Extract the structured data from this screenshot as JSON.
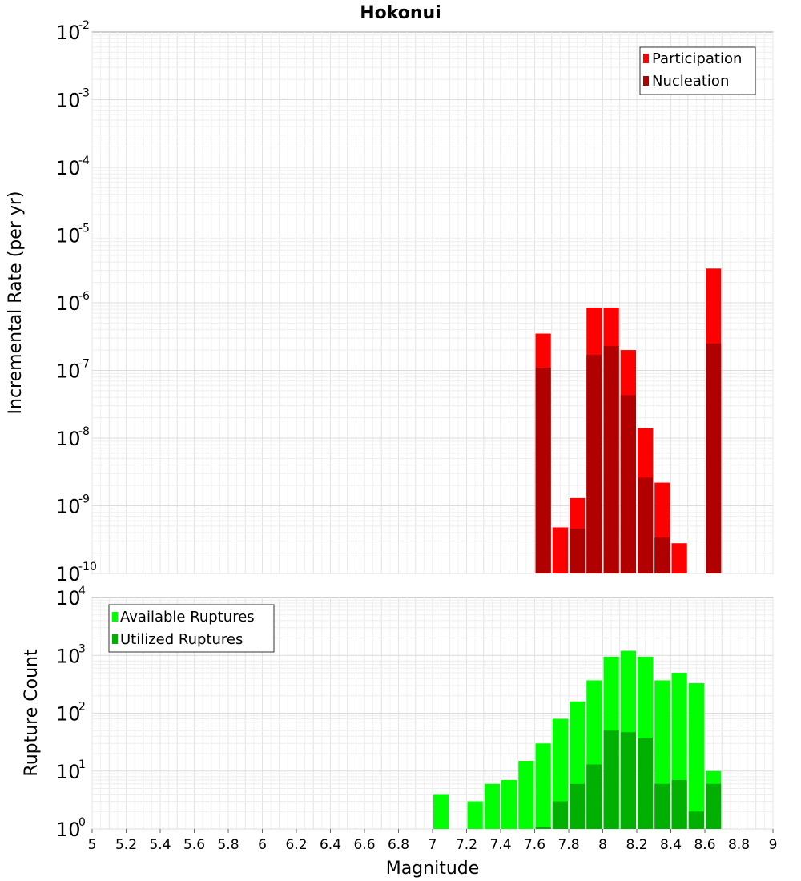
{
  "chart_data": [
    {
      "type": "bar",
      "title": "Hokonui",
      "ylabel": "Incremental Rate (per yr)",
      "xlim": [
        5,
        9
      ],
      "ylim": [
        1e-10,
        0.01
      ],
      "yscale": "log",
      "ytick_exponents": [
        -2,
        -3,
        -4,
        -5,
        -6,
        -7,
        -8,
        -9,
        -10
      ],
      "legend": {
        "position": "top-right"
      },
      "grid": true,
      "bar_width": 0.1,
      "series": [
        {
          "name": "Participation",
          "color": "#ff0000",
          "points": [
            {
              "x": 7.65,
              "y": 3.5e-07
            },
            {
              "x": 7.75,
              "y": 4.8e-10
            },
            {
              "x": 7.85,
              "y": 1.3e-09
            },
            {
              "x": 7.95,
              "y": 8.5e-07
            },
            {
              "x": 8.05,
              "y": 8.5e-07
            },
            {
              "x": 8.15,
              "y": 2e-07
            },
            {
              "x": 8.25,
              "y": 1.4e-08
            },
            {
              "x": 8.35,
              "y": 2.2e-09
            },
            {
              "x": 8.45,
              "y": 2.8e-10
            },
            {
              "x": 8.65,
              "y": 3.2e-06
            }
          ]
        },
        {
          "name": "Nucleation",
          "color": "#b00000",
          "points": [
            {
              "x": 7.65,
              "y": 1.1e-07
            },
            {
              "x": 7.85,
              "y": 4.6e-10
            },
            {
              "x": 7.95,
              "y": 1.7e-07
            },
            {
              "x": 8.05,
              "y": 2.3e-07
            },
            {
              "x": 8.15,
              "y": 4.3e-08
            },
            {
              "x": 8.25,
              "y": 2.6e-09
            },
            {
              "x": 8.35,
              "y": 3.4e-10
            },
            {
              "x": 8.65,
              "y": 2.5e-07
            }
          ]
        }
      ]
    },
    {
      "type": "bar",
      "xlabel": "Magnitude",
      "ylabel": "Rupture Count",
      "xlim": [
        5,
        9
      ],
      "ylim": [
        1,
        10000
      ],
      "yscale": "log",
      "ytick_exponents": [
        4,
        3,
        2,
        1,
        0
      ],
      "xticks": [
        "5",
        "5.2",
        "5.4",
        "5.6",
        "5.8",
        "6",
        "6.2",
        "6.4",
        "6.6",
        "6.8",
        "7",
        "7.2",
        "7.4",
        "7.6",
        "7.8",
        "8",
        "8.2",
        "8.4",
        "8.6",
        "8.8",
        "9"
      ],
      "legend": {
        "position": "top-left"
      },
      "grid": true,
      "bar_width": 0.1,
      "series": [
        {
          "name": "Available Ruptures",
          "color": "#00ff00",
          "points": [
            {
              "x": 7.05,
              "y": 4
            },
            {
              "x": 7.25,
              "y": 3
            },
            {
              "x": 7.35,
              "y": 6
            },
            {
              "x": 7.45,
              "y": 7
            },
            {
              "x": 7.55,
              "y": 15
            },
            {
              "x": 7.65,
              "y": 30
            },
            {
              "x": 7.75,
              "y": 80
            },
            {
              "x": 7.85,
              "y": 160
            },
            {
              "x": 7.95,
              "y": 370
            },
            {
              "x": 8.05,
              "y": 950
            },
            {
              "x": 8.15,
              "y": 1200
            },
            {
              "x": 8.25,
              "y": 950
            },
            {
              "x": 8.35,
              "y": 370
            },
            {
              "x": 8.45,
              "y": 500
            },
            {
              "x": 8.55,
              "y": 330
            },
            {
              "x": 8.65,
              "y": 10
            }
          ]
        },
        {
          "name": "Utilized Ruptures",
          "color": "#00b000",
          "points": [
            {
              "x": 7.65,
              "y": 1.1
            },
            {
              "x": 7.75,
              "y": 3
            },
            {
              "x": 7.85,
              "y": 6
            },
            {
              "x": 7.95,
              "y": 13
            },
            {
              "x": 8.05,
              "y": 50
            },
            {
              "x": 8.15,
              "y": 47
            },
            {
              "x": 8.25,
              "y": 37
            },
            {
              "x": 8.35,
              "y": 6
            },
            {
              "x": 8.45,
              "y": 7
            },
            {
              "x": 8.55,
              "y": 2
            },
            {
              "x": 8.65,
              "y": 6
            }
          ]
        }
      ]
    }
  ]
}
